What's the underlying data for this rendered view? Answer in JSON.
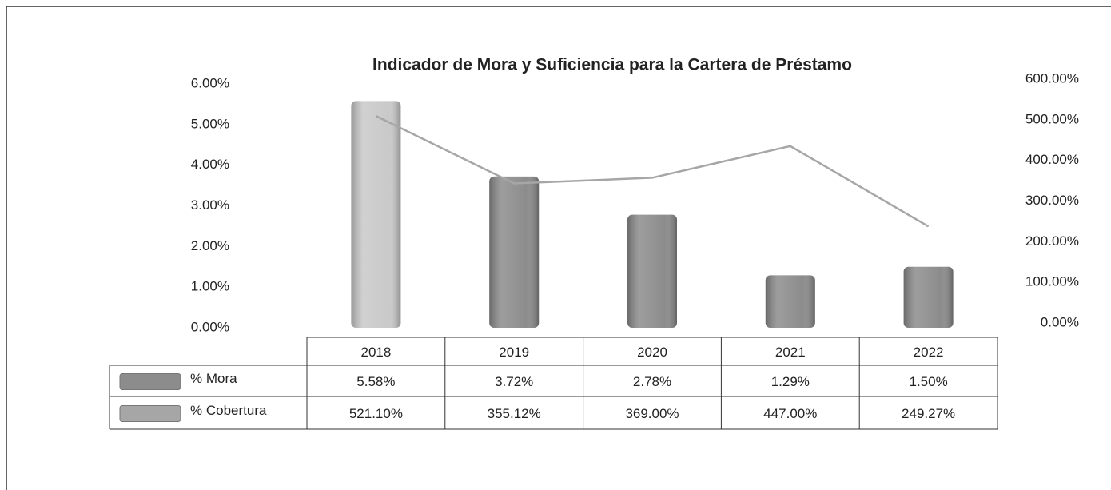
{
  "chart_data": {
    "type": "bar-line",
    "title": "Indicador de Mora y Suficiencia para la Cartera de Préstamo",
    "categories": [
      "2018",
      "2019",
      "2020",
      "2021",
      "2022"
    ],
    "series": [
      {
        "name": "% Mora",
        "type": "bar",
        "color": "#8c8c8c",
        "bar_colors": [
          "#c9c9c9",
          "#8c8c8c",
          "#8c8c8c",
          "#8c8c8c",
          "#8c8c8c"
        ],
        "values": [
          5.58,
          3.72,
          2.78,
          1.29,
          1.5
        ],
        "value_labels": [
          "5.58%",
          "3.72%",
          "2.78%",
          "1.29%",
          "1.50%"
        ]
      },
      {
        "name": "% Cobertura",
        "type": "line",
        "axis": "y2",
        "color": "#a6a6a6",
        "values": [
          521.1,
          355.12,
          369.0,
          447.0,
          249.27
        ],
        "value_labels": [
          "521.10%",
          "355.12%",
          "369.00%",
          "447.00%",
          "249.27%"
        ]
      }
    ],
    "ylim": [
      0,
      6
    ],
    "yticks": [
      {
        "value": 0,
        "label": "0.00%"
      },
      {
        "value": 1,
        "label": "1.00%"
      },
      {
        "value": 2,
        "label": "2.00%"
      },
      {
        "value": 3,
        "label": "3.00%"
      },
      {
        "value": 4,
        "label": "4.00%"
      },
      {
        "value": 5,
        "label": "5.00%"
      },
      {
        "value": 6,
        "label": "6.00%"
      }
    ],
    "y2lim": [
      0,
      600
    ],
    "y2ticks": [
      {
        "value": 0,
        "label": "0.00%"
      },
      {
        "value": 100,
        "label": "100.00%"
      },
      {
        "value": 200,
        "label": "200.00%"
      },
      {
        "value": 300,
        "label": "300.00%"
      },
      {
        "value": 400,
        "label": "400.00%"
      },
      {
        "value": 500,
        "label": "500.00%"
      },
      {
        "value": 600,
        "label": "600.00%"
      }
    ],
    "grid": false
  }
}
